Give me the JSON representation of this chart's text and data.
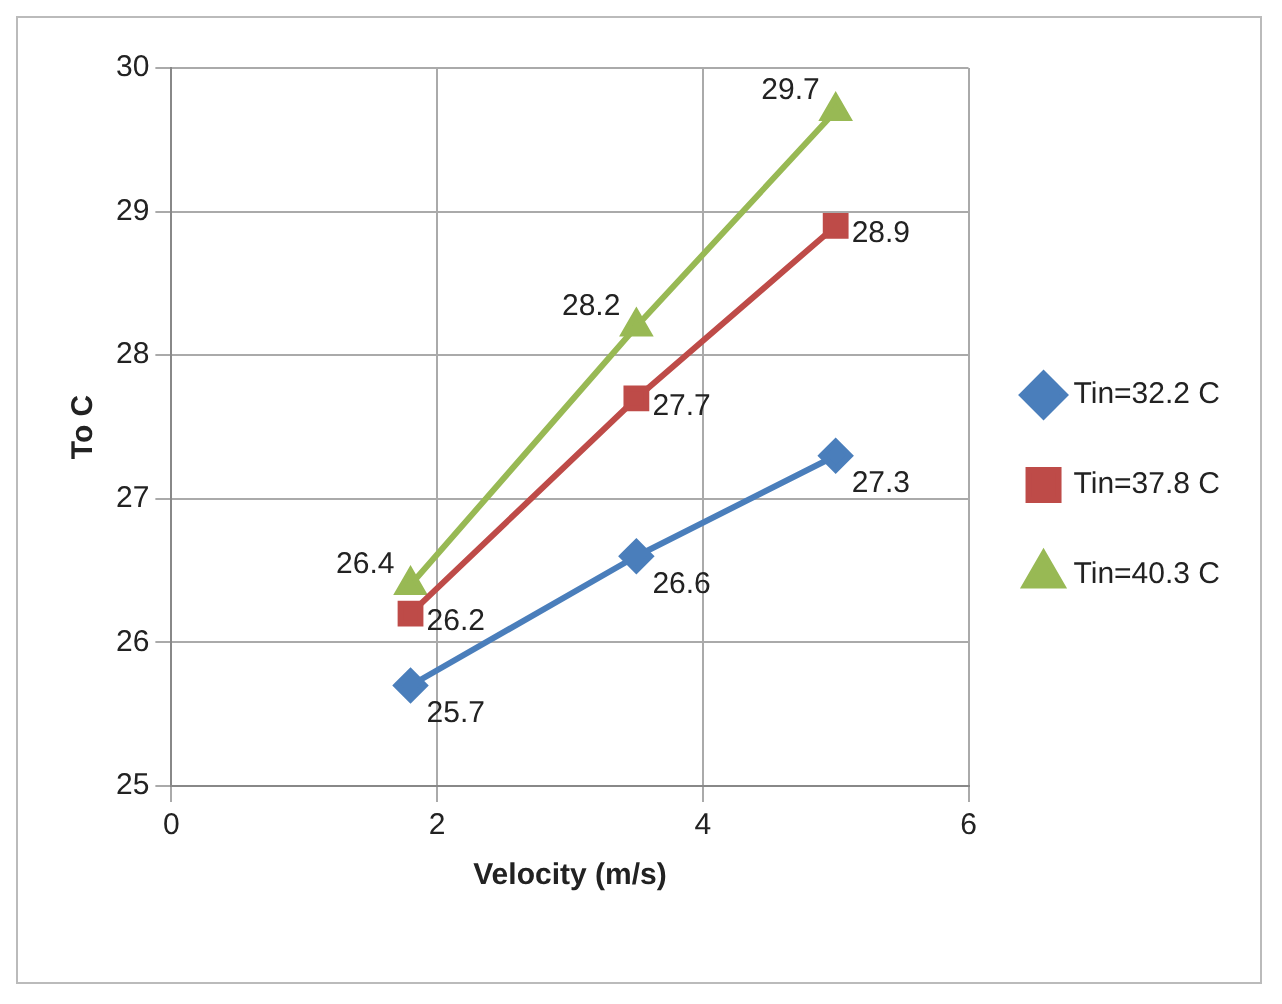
{
  "chart_data": {
    "type": "line",
    "xlabel": "Velocity (m/s)",
    "ylabel": "To C",
    "x": [
      1.8,
      3.5,
      5
    ],
    "series": [
      {
        "name": "Tin=32.2 C",
        "color": "#4a7ebb",
        "marker": "diamond",
        "values": [
          25.7,
          26.6,
          27.3
        ]
      },
      {
        "name": "Tin=37.8 C",
        "color": "#be4b48",
        "marker": "square",
        "values": [
          26.2,
          27.7,
          28.9
        ]
      },
      {
        "name": "Tin=40.3 C",
        "color": "#98b954",
        "marker": "triangle",
        "values": [
          26.4,
          28.2,
          29.7
        ]
      }
    ],
    "xlim": [
      0,
      6
    ],
    "xticks": [
      0,
      2,
      4,
      6
    ],
    "ylim": [
      25,
      30
    ],
    "yticks": [
      25,
      26,
      27,
      28,
      29,
      30
    ],
    "grid": true,
    "legend": "right",
    "data_labels": true,
    "line_style": "solid"
  }
}
